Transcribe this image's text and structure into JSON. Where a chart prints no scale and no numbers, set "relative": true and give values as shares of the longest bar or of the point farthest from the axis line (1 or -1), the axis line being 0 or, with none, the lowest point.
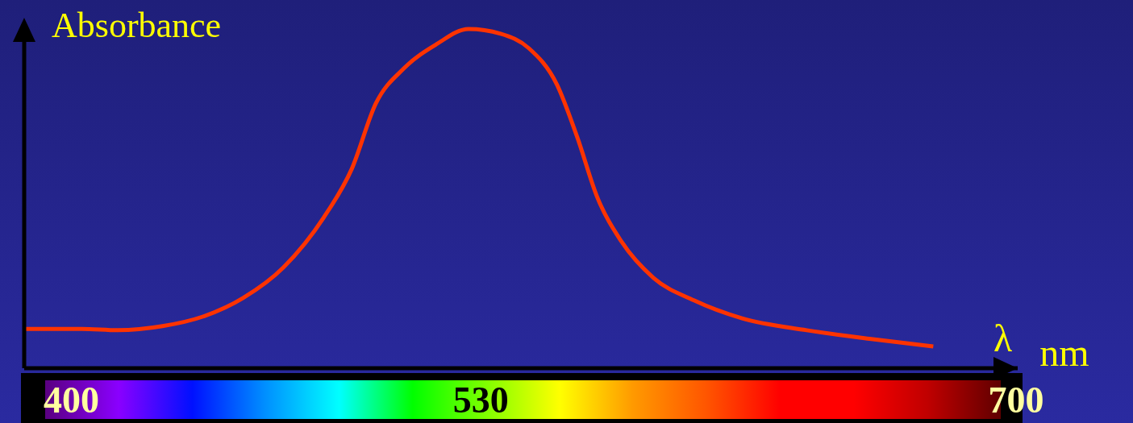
{
  "chart_data": {
    "type": "line",
    "relative": true,
    "ylabel": "Absorbance",
    "xlabel": "λ nm",
    "xlim": [
      385,
      700.5
    ],
    "xticks": [
      400,
      530,
      700
    ],
    "tick_labels": "x",
    "series": [
      {
        "color": "#ff3300",
        "x": [
          385.4,
          403.3,
          414.8,
          428.9,
          441.7,
          454.5,
          467.3,
          480.1,
          489.0,
          496.7,
          505.6,
          515.9,
          526.1,
          536.3,
          545.3,
          554.2,
          560.6,
          567.0,
          574.7,
          584.9,
          597.7,
          613.0,
          633.5,
          654.0,
          673.7
        ],
        "values": [
          0.116,
          0.116,
          0.112,
          0.124,
          0.152,
          0.207,
          0.297,
          0.444,
          0.587,
          0.781,
          0.884,
          0.955,
          1.0,
          0.986,
          0.943,
          0.836,
          0.682,
          0.504,
          0.373,
          0.266,
          0.2,
          0.147,
          0.112,
          0.086,
          0.064
        ]
      }
    ]
  }
}
